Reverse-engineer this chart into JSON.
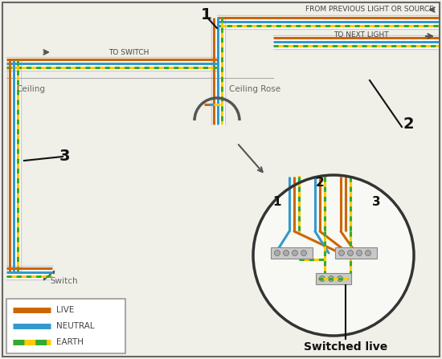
{
  "bg_color": "#f0efe8",
  "border_color": "#666666",
  "wire_live": "#cc6600",
  "wire_neutral": "#3399cc",
  "wire_earth_yellow": "#ffcc00",
  "wire_earth_green": "#33aa33",
  "wire_white": "#ffffff",
  "wire_sheath": "#cccccc",
  "label_ceiling": "Ceiling",
  "label_ceiling_rose": "Ceiling Rose",
  "label_switch": "Switch",
  "label_to_switch": "TO SWITCH",
  "label_from_source": "FROM PREVIOUS LIGHT OR SOURCE",
  "label_to_next": "TO NEXT LIGHT",
  "label_switched_live": "Switched live",
  "legend_live": "LIVE",
  "legend_neutral": "NEUTRAL",
  "legend_earth": "EARTH"
}
